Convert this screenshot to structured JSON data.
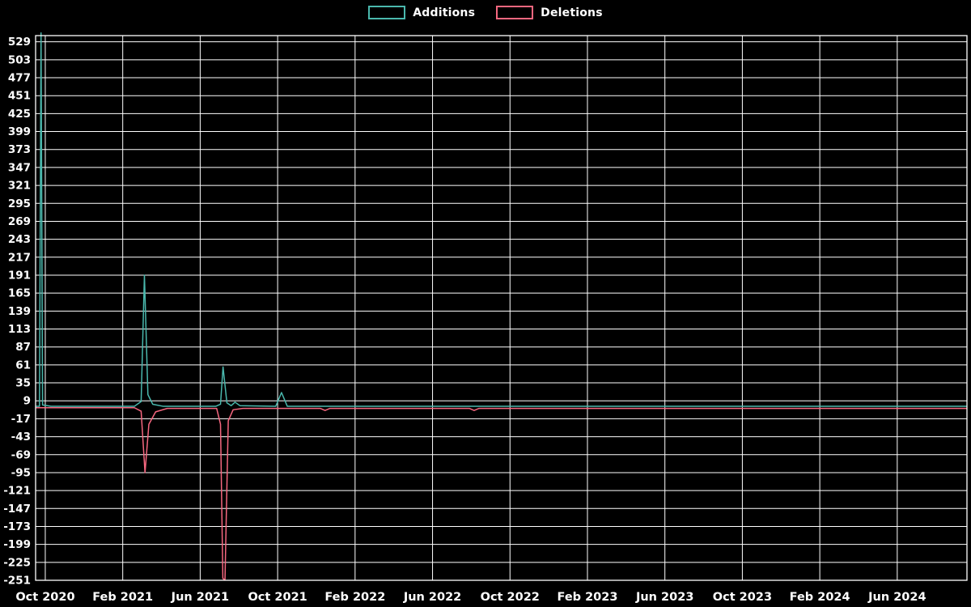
{
  "window": {
    "background_color": "#000000"
  },
  "chart_data": {
    "type": "line",
    "title": "",
    "xlabel": "",
    "ylabel": "",
    "grid": true,
    "legend_position": "top-center",
    "background_color": "#000000",
    "grid_color": "#ffffff",
    "text_color": "#ffffff",
    "x_axis": {
      "unit": "months offset from Oct 2020",
      "range": [
        -0.5,
        47.6
      ],
      "ticks": [
        {
          "pos": 0,
          "label": "Oct 2020"
        },
        {
          "pos": 4,
          "label": "Feb 2021"
        },
        {
          "pos": 8,
          "label": "Jun 2021"
        },
        {
          "pos": 12,
          "label": "Oct 2021"
        },
        {
          "pos": 16,
          "label": "Feb 2022"
        },
        {
          "pos": 20,
          "label": "Jun 2022"
        },
        {
          "pos": 24,
          "label": "Oct 2022"
        },
        {
          "pos": 28,
          "label": "Feb 2023"
        },
        {
          "pos": 32,
          "label": "Jun 2023"
        },
        {
          "pos": 36,
          "label": "Oct 2023"
        },
        {
          "pos": 40,
          "label": "Feb 2024"
        },
        {
          "pos": 44,
          "label": "Jun 2024"
        }
      ]
    },
    "y_axis": {
      "range": [
        -251,
        538
      ],
      "ticks": [
        529,
        503,
        477,
        451,
        425,
        399,
        373,
        347,
        321,
        295,
        269,
        243,
        217,
        191,
        165,
        139,
        113,
        87,
        61,
        35,
        9,
        -17,
        -43,
        -69,
        -95,
        -121,
        -147,
        -173,
        -199,
        -225,
        -251
      ]
    },
    "series": [
      {
        "name": "Additions",
        "color": "#4ab8ad",
        "points": [
          [
            -0.5,
            1
          ],
          [
            -0.3,
            1
          ],
          [
            -0.22,
            542
          ],
          [
            -0.14,
            3
          ],
          [
            0.3,
            1
          ],
          [
            4.6,
            1
          ],
          [
            4.95,
            8
          ],
          [
            5.12,
            191
          ],
          [
            5.3,
            18
          ],
          [
            5.55,
            4
          ],
          [
            6.1,
            1
          ],
          [
            8.8,
            1
          ],
          [
            9.05,
            4
          ],
          [
            9.18,
            58
          ],
          [
            9.38,
            6
          ],
          [
            9.6,
            2
          ],
          [
            9.8,
            7
          ],
          [
            10.05,
            2
          ],
          [
            11.9,
            1
          ],
          [
            12.2,
            21
          ],
          [
            12.5,
            1
          ],
          [
            14.0,
            1
          ],
          [
            47.6,
            1
          ]
        ]
      },
      {
        "name": "Deletions",
        "color": "#f5677f",
        "points": [
          [
            -0.5,
            -1
          ],
          [
            4.6,
            -1
          ],
          [
            4.95,
            -6
          ],
          [
            5.15,
            -95
          ],
          [
            5.35,
            -25
          ],
          [
            5.7,
            -7
          ],
          [
            6.3,
            -2
          ],
          [
            8.85,
            -2
          ],
          [
            9.05,
            -25
          ],
          [
            9.17,
            -248
          ],
          [
            9.28,
            -251
          ],
          [
            9.45,
            -20
          ],
          [
            9.7,
            -4
          ],
          [
            10.2,
            -2
          ],
          [
            14.2,
            -2
          ],
          [
            14.45,
            -5
          ],
          [
            14.7,
            -2
          ],
          [
            21.9,
            -2
          ],
          [
            22.15,
            -5
          ],
          [
            22.4,
            -2
          ],
          [
            47.6,
            -2
          ]
        ]
      }
    ]
  }
}
